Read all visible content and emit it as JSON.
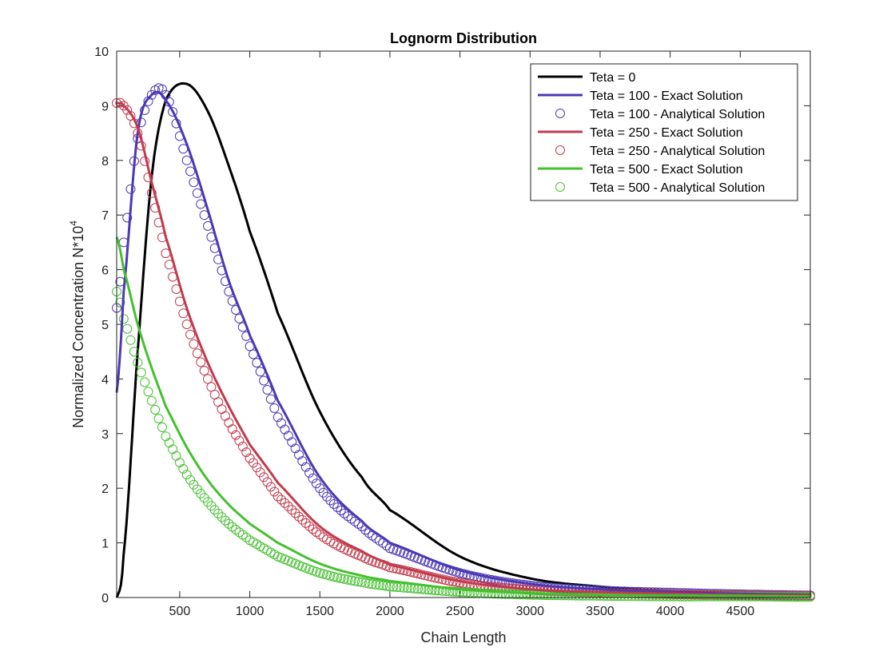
{
  "chart_data": {
    "type": "line",
    "title": "Lognorm Distribution",
    "xlabel": "Chain Length",
    "ylabel_base": "Normalized Concentration N*10",
    "ylabel_exp": "4",
    "xlim": [
      50,
      5000
    ],
    "ylim": [
      0,
      10
    ],
    "xticks": [
      500,
      1000,
      1500,
      2000,
      2500,
      3000,
      3500,
      4000,
      4500
    ],
    "xtick_labels": [
      "500",
      "1000",
      "1500",
      "2000",
      "2500",
      "3000",
      "3500",
      "4000",
      "4500"
    ],
    "yticks": [
      0,
      1,
      2,
      3,
      4,
      5,
      6,
      7,
      8,
      9,
      10
    ],
    "ytick_labels": [
      "0",
      "1",
      "2",
      "3",
      "4",
      "5",
      "6",
      "7",
      "8",
      "9",
      "10"
    ],
    "grid": false,
    "legend_position": "top-right",
    "x": [
      50,
      100,
      200,
      300,
      400,
      550,
      700,
      850,
      1000,
      1200,
      1500,
      1800,
      2000,
      2500,
      3000,
      3500,
      4000,
      4500,
      5000
    ],
    "series": [
      {
        "name": "Teta = 0",
        "style": "line",
        "color": "#000000",
        "values": [
          0.0,
          0.8,
          4.5,
          7.7,
          9.1,
          9.4,
          8.9,
          7.9,
          6.7,
          5.2,
          3.4,
          2.2,
          1.6,
          0.75,
          0.35,
          0.2,
          0.12,
          0.08,
          0.05
        ]
      },
      {
        "name": "Teta = 100 - Exact Solution",
        "style": "line",
        "color": "#4b38b5",
        "values": [
          3.75,
          5.6,
          8.5,
          9.2,
          9.1,
          8.3,
          7.1,
          5.8,
          4.8,
          3.6,
          2.2,
          1.4,
          1.0,
          0.5,
          0.25,
          0.15,
          0.1,
          0.07,
          0.05
        ]
      },
      {
        "name": "Teta = 100 - Analytical Solution",
        "style": "marker",
        "color": "#4b38b5",
        "values": [
          5.3,
          6.5,
          8.4,
          9.2,
          9.2,
          8.0,
          6.8,
          5.6,
          4.6,
          3.3,
          2.0,
          1.3,
          0.9,
          0.45,
          0.22,
          0.13,
          0.09,
          0.06,
          0.04
        ]
      },
      {
        "name": "Teta = 250 - Exact Solution",
        "style": "line",
        "color": "#c23a4c",
        "values": [
          9.05,
          9.0,
          8.6,
          7.6,
          6.6,
          5.3,
          4.3,
          3.5,
          2.8,
          2.1,
          1.3,
          0.85,
          0.6,
          0.3,
          0.15,
          0.1,
          0.07,
          0.05,
          0.04
        ]
      },
      {
        "name": "Teta = 250 - Analytical Solution",
        "style": "marker",
        "color": "#c23a4c",
        "values": [
          9.05,
          9.0,
          8.5,
          7.4,
          6.3,
          5.0,
          4.0,
          3.2,
          2.55,
          1.85,
          1.15,
          0.75,
          0.55,
          0.27,
          0.14,
          0.09,
          0.06,
          0.04,
          0.03
        ]
      },
      {
        "name": "Teta = 500 - Exact Solution",
        "style": "line",
        "color": "#44c02e",
        "values": [
          6.6,
          6.0,
          5.0,
          4.2,
          3.5,
          2.75,
          2.15,
          1.7,
          1.35,
          1.0,
          0.62,
          0.4,
          0.3,
          0.15,
          0.08,
          0.05,
          0.04,
          0.03,
          0.02
        ]
      },
      {
        "name": "Teta = 500 - Analytical Solution",
        "style": "marker",
        "color": "#44c02e",
        "values": [
          5.6,
          5.1,
          4.3,
          3.6,
          2.95,
          2.25,
          1.75,
          1.35,
          1.05,
          0.75,
          0.45,
          0.28,
          0.2,
          0.1,
          0.05,
          0.03,
          0.02,
          0.02,
          0.01
        ]
      }
    ]
  }
}
